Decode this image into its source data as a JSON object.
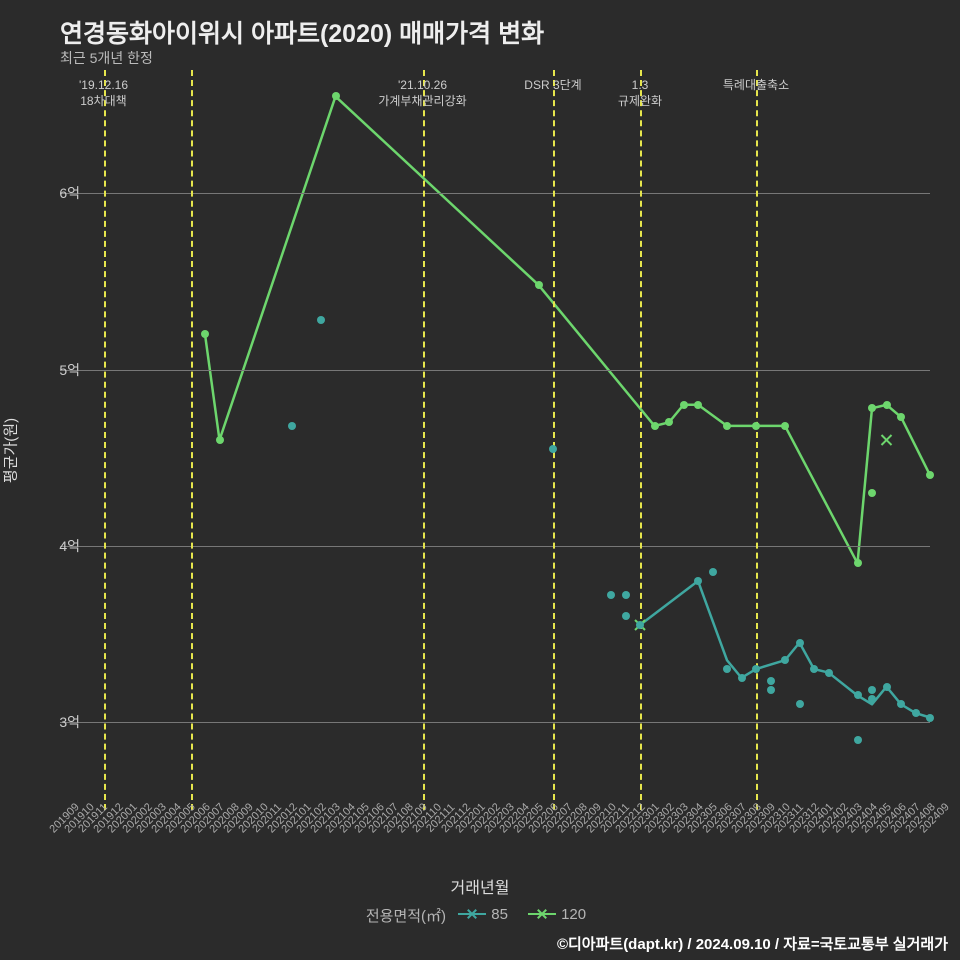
{
  "title": "연경동화아이위시 아파트(2020) 매매가격 변화",
  "subtitle": "최근 5개년 한정",
  "y_axis": {
    "label": "평균가(원)",
    "min": 2.5,
    "max": 6.7,
    "ticks": [
      3,
      4,
      5,
      6
    ],
    "tick_labels": [
      "3억",
      "4억",
      "5억",
      "6억"
    ],
    "grid_color": "#777777"
  },
  "x_axis": {
    "label": "거래년월",
    "ticks": [
      "201909",
      "201910",
      "201911",
      "201912",
      "202001",
      "202002",
      "202003",
      "202004",
      "202005",
      "202006",
      "202007",
      "202008",
      "202009",
      "202010",
      "202011",
      "202012",
      "202101",
      "202102",
      "202103",
      "202104",
      "202105",
      "202106",
      "202107",
      "202108",
      "202109",
      "202110",
      "202111",
      "202112",
      "202201",
      "202202",
      "202203",
      "202204",
      "202205",
      "202206",
      "202207",
      "202208",
      "202209",
      "202210",
      "202211",
      "202212",
      "202301",
      "202302",
      "202303",
      "202304",
      "202305",
      "202306",
      "202307",
      "202308",
      "202309",
      "202310",
      "202311",
      "202312",
      "202401",
      "202402",
      "202403",
      "202404",
      "202405",
      "202406",
      "202407",
      "202408",
      "202409"
    ]
  },
  "vertical_lines": [
    {
      "index": 3,
      "label": "'19.12.16\n18차대책"
    },
    {
      "index": 9,
      "label": ""
    },
    {
      "index": 25,
      "label": "'21.10.26\n가계부채관리강화"
    },
    {
      "index": 34,
      "label": "DSR 3단계"
    },
    {
      "index": 40,
      "label": "1.3\n규제완화"
    },
    {
      "index": 48,
      "label": "특례대출축소"
    }
  ],
  "vline_color": "#e6e64d",
  "legend": {
    "title": "전용면적(㎡)",
    "items": [
      {
        "label": "85",
        "color": "#3fa7a0"
      },
      {
        "label": "120",
        "color": "#6dd66d"
      }
    ]
  },
  "series": [
    {
      "name": "85",
      "color": "#3fa7a0",
      "line": [
        {
          "x": 40,
          "y": 3.55
        },
        {
          "x": 44,
          "y": 3.8
        },
        {
          "x": 46,
          "y": 3.35
        },
        {
          "x": 47,
          "y": 3.25
        },
        {
          "x": 48,
          "y": 3.3
        },
        {
          "x": 50,
          "y": 3.35
        },
        {
          "x": 51,
          "y": 3.45
        },
        {
          "x": 52,
          "y": 3.3
        },
        {
          "x": 53,
          "y": 3.28
        },
        {
          "x": 55,
          "y": 3.15
        },
        {
          "x": 56,
          "y": 3.1
        },
        {
          "x": 57,
          "y": 3.2
        },
        {
          "x": 58,
          "y": 3.1
        },
        {
          "x": 59,
          "y": 3.05
        },
        {
          "x": 60,
          "y": 3.025
        }
      ],
      "scatter": [
        {
          "x": 16,
          "y": 4.68
        },
        {
          "x": 18,
          "y": 5.28
        },
        {
          "x": 34,
          "y": 4.55
        },
        {
          "x": 38,
          "y": 3.72
        },
        {
          "x": 39,
          "y": 3.72
        },
        {
          "x": 39,
          "y": 3.6
        },
        {
          "x": 40,
          "y": 3.55
        },
        {
          "x": 44,
          "y": 3.8
        },
        {
          "x": 45,
          "y": 3.85
        },
        {
          "x": 46,
          "y": 3.3
        },
        {
          "x": 47,
          "y": 3.25
        },
        {
          "x": 48,
          "y": 3.3
        },
        {
          "x": 49,
          "y": 3.23
        },
        {
          "x": 49,
          "y": 3.18
        },
        {
          "x": 50,
          "y": 3.35
        },
        {
          "x": 51,
          "y": 3.45
        },
        {
          "x": 51,
          "y": 3.1
        },
        {
          "x": 52,
          "y": 3.3
        },
        {
          "x": 53,
          "y": 3.28
        },
        {
          "x": 55,
          "y": 3.15
        },
        {
          "x": 55,
          "y": 2.9
        },
        {
          "x": 56,
          "y": 3.13
        },
        {
          "x": 56,
          "y": 3.18
        },
        {
          "x": 57,
          "y": 3.2
        },
        {
          "x": 58,
          "y": 3.1
        },
        {
          "x": 59,
          "y": 3.05
        },
        {
          "x": 60,
          "y": 3.025
        }
      ]
    },
    {
      "name": "120",
      "color": "#6dd66d",
      "line": [
        {
          "x": 10,
          "y": 5.2
        },
        {
          "x": 11,
          "y": 4.6
        },
        {
          "x": 19,
          "y": 6.55
        },
        {
          "x": 33,
          "y": 5.48
        },
        {
          "x": 41,
          "y": 4.68
        },
        {
          "x": 42,
          "y": 4.7
        },
        {
          "x": 43,
          "y": 4.8
        },
        {
          "x": 44,
          "y": 4.8
        },
        {
          "x": 46,
          "y": 4.68
        },
        {
          "x": 48,
          "y": 4.68
        },
        {
          "x": 50,
          "y": 4.68
        },
        {
          "x": 55,
          "y": 3.9
        },
        {
          "x": 56,
          "y": 4.78
        },
        {
          "x": 57,
          "y": 4.8
        },
        {
          "x": 58,
          "y": 4.73
        },
        {
          "x": 60,
          "y": 4.4
        }
      ],
      "scatter": [
        {
          "x": 10,
          "y": 5.2
        },
        {
          "x": 11,
          "y": 4.6
        },
        {
          "x": 19,
          "y": 6.55
        },
        {
          "x": 33,
          "y": 5.48
        },
        {
          "x": 41,
          "y": 4.68
        },
        {
          "x": 42,
          "y": 4.7
        },
        {
          "x": 43,
          "y": 4.8
        },
        {
          "x": 44,
          "y": 4.8
        },
        {
          "x": 46,
          "y": 4.68
        },
        {
          "x": 48,
          "y": 4.68
        },
        {
          "x": 50,
          "y": 4.68
        },
        {
          "x": 55,
          "y": 3.9
        },
        {
          "x": 56,
          "y": 4.78
        },
        {
          "x": 56,
          "y": 4.3
        },
        {
          "x": 57,
          "y": 4.8
        },
        {
          "x": 58,
          "y": 4.73
        },
        {
          "x": 60,
          "y": 4.4
        }
      ],
      "x_markers": [
        {
          "x": 40,
          "y": 3.55
        },
        {
          "x": 57,
          "y": 4.6
        }
      ]
    }
  ],
  "credit": "©디아파트(dapt.kr) / 2024.09.10 / 자료=국토교통부 실거래가",
  "background_color": "#2b2b2b",
  "line_width": 2.5
}
